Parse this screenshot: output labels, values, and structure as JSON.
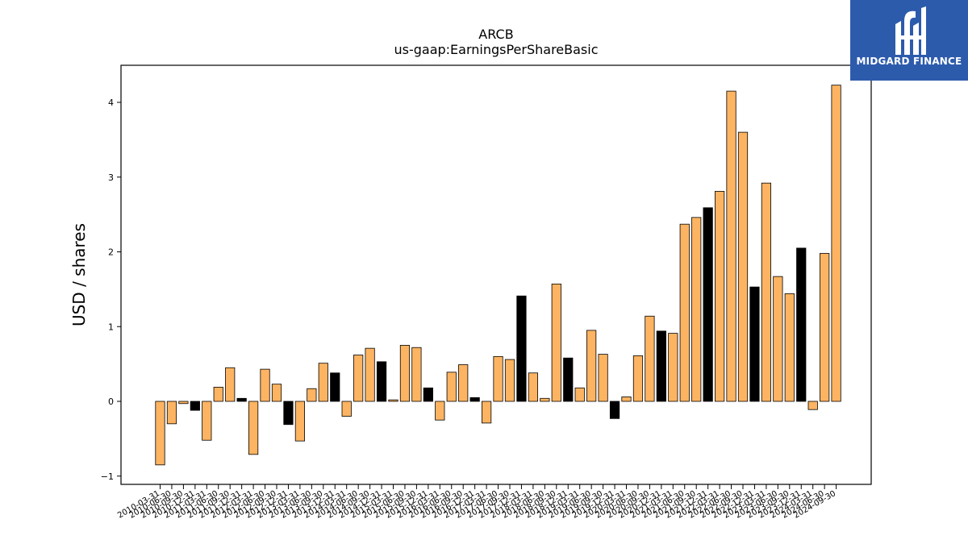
{
  "logo": {
    "text": "MIDGARD FINANCE"
  },
  "chart_data": {
    "type": "bar",
    "title": "ARCB",
    "subtitle": "us-gaap:EarningsPerShareBasic",
    "ylabel": "USD / shares",
    "xlabel": "",
    "ylim": [
      -1.1,
      4.5
    ],
    "yticks": [
      -1,
      0,
      1,
      2,
      3,
      4
    ],
    "grid": false,
    "colors": {
      "default": "#fdb462",
      "highlight": "#000000"
    },
    "categories": [
      "2010-03-31",
      "2010-06-30",
      "2010-09-30",
      "2010-12-31",
      "2011-03-31",
      "2011-06-30",
      "2011-09-30",
      "2011-12-31",
      "2012-03-31",
      "2012-06-30",
      "2012-09-30",
      "2012-12-31",
      "2013-03-31",
      "2013-06-30",
      "2013-09-30",
      "2013-12-31",
      "2014-03-31",
      "2014-06-30",
      "2014-09-30",
      "2014-12-31",
      "2015-03-31",
      "2015-06-30",
      "2015-09-30",
      "2015-12-31",
      "2016-03-31",
      "2016-06-30",
      "2016-09-30",
      "2016-12-31",
      "2017-03-31",
      "2017-06-30",
      "2017-09-30",
      "2017-12-31",
      "2018-03-31",
      "2018-06-30",
      "2018-09-30",
      "2018-12-31",
      "2019-03-31",
      "2019-06-30",
      "2019-09-30",
      "2019-12-31",
      "2020-03-31",
      "2020-06-30",
      "2020-09-30",
      "2020-12-31",
      "2021-03-31",
      "2021-06-30",
      "2021-09-30",
      "2021-12-31",
      "2022-03-31",
      "2022-06-30",
      "2022-09-30",
      "2022-12-31",
      "2023-03-31",
      "2023-06-30",
      "2023-09-30",
      "2023-12-31",
      "2024-03-31",
      "2024-06-30",
      "2024-09-30"
    ],
    "values": [
      -0.85,
      -0.3,
      -0.03,
      -0.12,
      -0.52,
      0.19,
      0.45,
      0.04,
      -0.71,
      0.43,
      0.23,
      -0.31,
      -0.53,
      0.17,
      0.51,
      0.38,
      -0.2,
      0.62,
      0.71,
      0.53,
      0.02,
      0.75,
      0.72,
      0.18,
      -0.25,
      0.39,
      0.49,
      0.05,
      -0.29,
      0.6,
      0.56,
      1.41,
      0.38,
      0.04,
      1.57,
      0.58,
      0.18,
      0.95,
      0.63,
      -0.23,
      0.06,
      0.61,
      1.14,
      0.94,
      0.91,
      2.37,
      2.46,
      2.59,
      2.81,
      4.15,
      3.6,
      1.53,
      2.92,
      1.67,
      1.44,
      2.05,
      -0.11,
      1.98,
      4.23
    ],
    "highlight": [
      false,
      false,
      false,
      true,
      false,
      false,
      false,
      true,
      false,
      false,
      false,
      true,
      false,
      false,
      false,
      true,
      false,
      false,
      false,
      true,
      false,
      false,
      false,
      true,
      false,
      false,
      false,
      true,
      false,
      false,
      false,
      true,
      false,
      false,
      false,
      true,
      false,
      false,
      false,
      true,
      false,
      false,
      false,
      true,
      false,
      false,
      false,
      true,
      false,
      false,
      false,
      true,
      false,
      false,
      false,
      true,
      false,
      false,
      false
    ]
  }
}
